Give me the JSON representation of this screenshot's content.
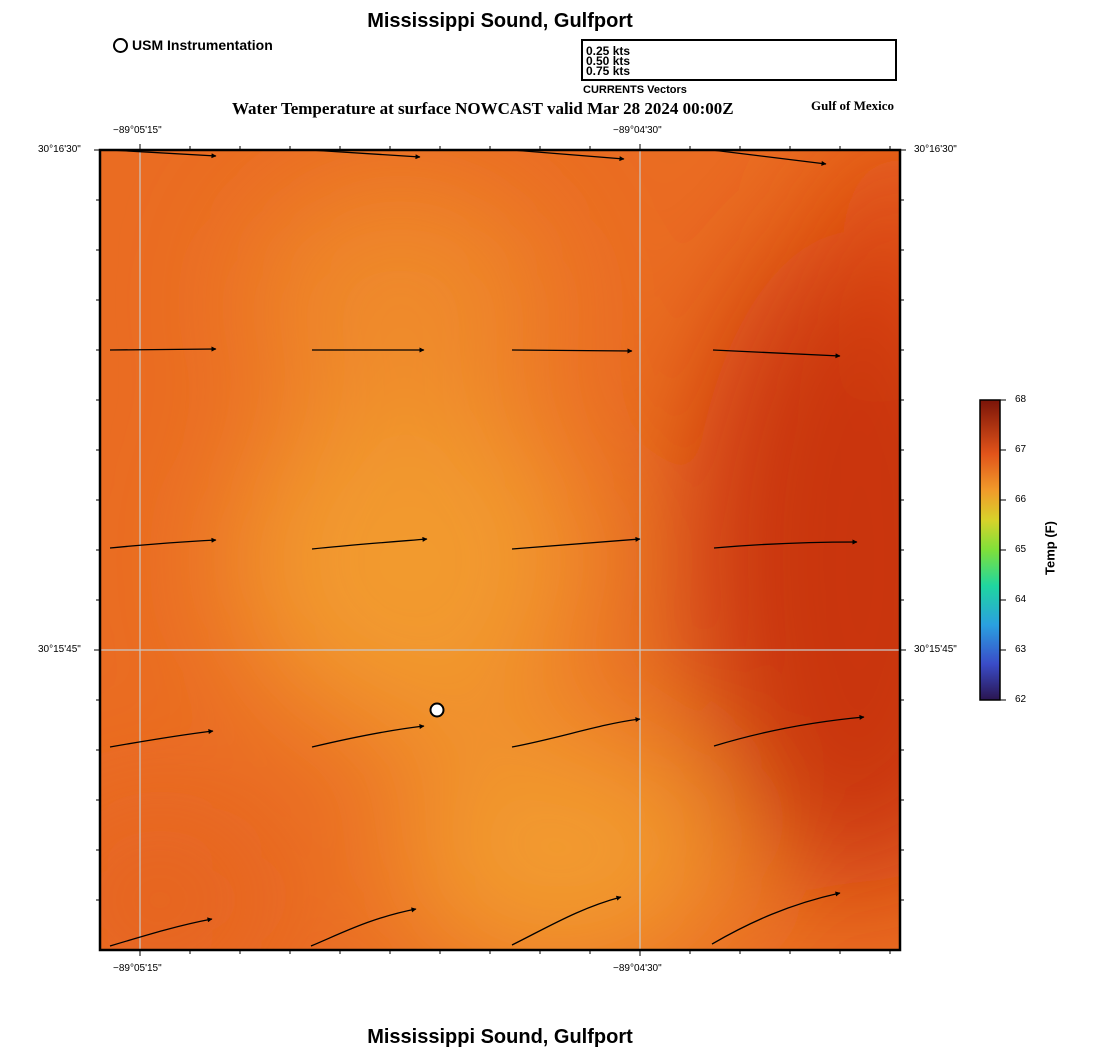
{
  "header": {
    "title": "Mississippi Sound, Gulfport",
    "subtitle": "Water Temperature at surface NOWCAST valid Mar 28 2024 00:00Z",
    "region": "Gulf of Mexico"
  },
  "footer": {
    "title": "Mississippi Sound, Gulfport"
  },
  "legend": {
    "station_label": "USM Instrumentation",
    "vector_scale": [
      "0.25 kts",
      "0.50 kts",
      "0.75 kts"
    ],
    "vector_caption": "CURRENTS Vectors"
  },
  "axes": {
    "lon_ticks": [
      "−89°05'15\"",
      "−89°04'30\""
    ],
    "lat_ticks": [
      "30°16'30\"",
      "30°15'45\""
    ]
  },
  "colorbar": {
    "title": "Temp (F)",
    "ticks": [
      "68",
      "67",
      "66",
      "65",
      "64",
      "63",
      "62"
    ]
  },
  "colors": {
    "field_warm": "#f29a2e",
    "field_mid": "#ea6c22",
    "field_hot": "#c9350d"
  }
}
